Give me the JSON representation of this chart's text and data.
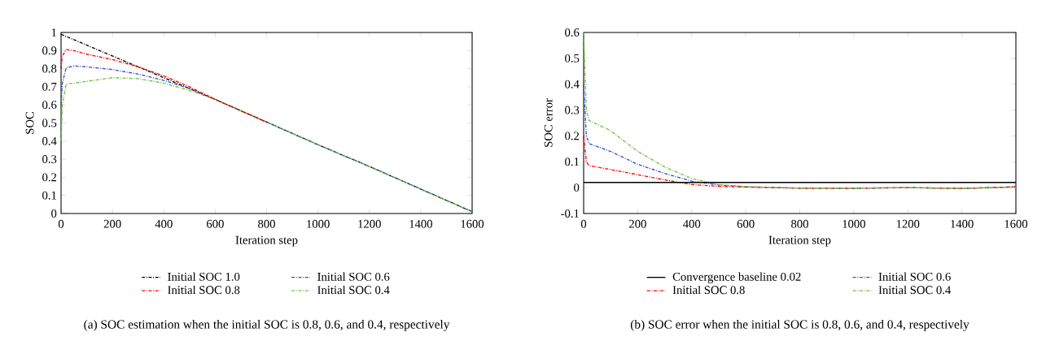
{
  "chart_data": [
    {
      "type": "line",
      "title": "(a)  SOC estimation when the initial SOC is 0.8, 0.6, and 0.4, respectively",
      "xlabel": "Iteration step",
      "ylabel": "SOC",
      "x": [
        0,
        5,
        20,
        50,
        100,
        200,
        300,
        400,
        500,
        600,
        800,
        1000,
        1200,
        1400,
        1600
      ],
      "xlim": [
        0,
        1600
      ],
      "xticks": [
        0,
        200,
        400,
        600,
        800,
        1000,
        1200,
        1400,
        1600
      ],
      "ylim": [
        0,
        1
      ],
      "yticks": [
        0,
        0.1,
        0.2,
        0.3,
        0.4,
        0.5,
        0.6,
        0.7,
        0.8,
        0.9,
        1
      ],
      "legend": "bottom",
      "line_style": "dashdot",
      "marker": "none",
      "series": [
        {
          "name": "Initial SOC 1.0",
          "color": "#000000",
          "values": [
            0.99,
            0.987,
            0.978,
            0.96,
            0.93,
            0.87,
            0.81,
            0.75,
            0.69,
            0.63,
            0.505,
            0.38,
            0.26,
            0.135,
            0.01
          ]
        },
        {
          "name": "Initial SOC 0.6",
          "color": "#3050c0",
          "values": [
            0.6,
            0.72,
            0.805,
            0.815,
            0.81,
            0.795,
            0.77,
            0.735,
            0.69,
            0.63,
            0.505,
            0.38,
            0.26,
            0.135,
            0.01
          ]
        },
        {
          "name": "Initial SOC 0.8",
          "color": "#ff0000",
          "values": [
            0.8,
            0.87,
            0.905,
            0.9,
            0.88,
            0.85,
            0.81,
            0.76,
            0.7,
            0.63,
            0.505,
            null,
            null,
            null,
            null
          ]
        },
        {
          "name": "Initial SOC 0.4",
          "color": "#70c040",
          "values": [
            0.4,
            0.6,
            0.715,
            0.72,
            0.73,
            0.75,
            0.745,
            0.72,
            0.68,
            0.63,
            0.505,
            0.38,
            0.26,
            0.135,
            0.01
          ]
        }
      ]
    },
    {
      "type": "line",
      "title": "(b)  SOC error when the initial SOC is 0.8, 0.6, and 0.4, respectively",
      "xlabel": "Iteration step",
      "ylabel": "SOC error",
      "x": [
        0,
        10,
        20,
        100,
        200,
        300,
        400,
        500,
        600,
        800,
        1000,
        1200,
        1400,
        1600
      ],
      "xlim": [
        0,
        1600
      ],
      "xticks": [
        0,
        200,
        400,
        600,
        800,
        1000,
        1200,
        1400,
        1600
      ],
      "ylim": [
        -0.1,
        0.6
      ],
      "yticks": [
        -0.1,
        0,
        0.1,
        0.2,
        0.3,
        0.4,
        0.5,
        0.6
      ],
      "legend": "bottom",
      "line_style": "dashdot",
      "marker": "none",
      "series": [
        {
          "name": "Convergence baseline 0.02",
          "color": "#000000",
          "line_style": "solid",
          "x": [
            0,
            1600
          ],
          "values": [
            0.02,
            0.02
          ]
        },
        {
          "name": "Initial SOC 0.6",
          "color": "#3050c0",
          "values": [
            0.4,
            0.2,
            0.17,
            0.14,
            0.09,
            0.055,
            0.025,
            0.01,
            0.003,
            -0.002,
            -0.003,
            0,
            -0.003,
            0.003
          ]
        },
        {
          "name": "Initial SOC 0.8",
          "color": "#ff0000",
          "values": [
            0.2,
            0.1,
            0.085,
            0.07,
            0.05,
            0.03,
            0.012,
            0.005,
            0.002,
            -0.002,
            -0.002,
            0,
            -0.003,
            0.003
          ]
        },
        {
          "name": "Initial SOC 0.4",
          "color": "#70c040",
          "values": [
            0.6,
            0.3,
            0.26,
            0.22,
            0.14,
            0.08,
            0.035,
            0.012,
            0.004,
            -0.002,
            -0.002,
            0,
            -0.004,
            0.002
          ]
        }
      ]
    }
  ]
}
